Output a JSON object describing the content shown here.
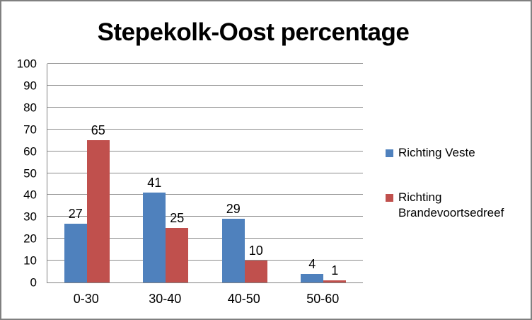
{
  "window": {
    "background": "#FFFFFF",
    "border_color": "#808080"
  },
  "chart_data": {
    "type": "bar",
    "title": "Stepekolk-Oost percentage",
    "categories": [
      "0-30",
      "30-40",
      "40-50",
      "50-60"
    ],
    "series": [
      {
        "name": "Richting Veste",
        "color": "#4F81BD",
        "values": [
          27,
          41,
          29,
          4
        ]
      },
      {
        "name": "Richting Brandevoortsedreef",
        "color": "#C0504D",
        "values": [
          65,
          25,
          10,
          1
        ]
      }
    ],
    "data_labels": true,
    "xlabel": "",
    "ylabel": "",
    "ylim": [
      0,
      100
    ],
    "yticks": [
      0,
      10,
      20,
      30,
      40,
      50,
      60,
      70,
      80,
      90,
      100
    ],
    "grid": true,
    "gridline_color": "#8C8C8C",
    "axis_color": "#808080",
    "text_color": "#000000",
    "legend_position": "right"
  }
}
